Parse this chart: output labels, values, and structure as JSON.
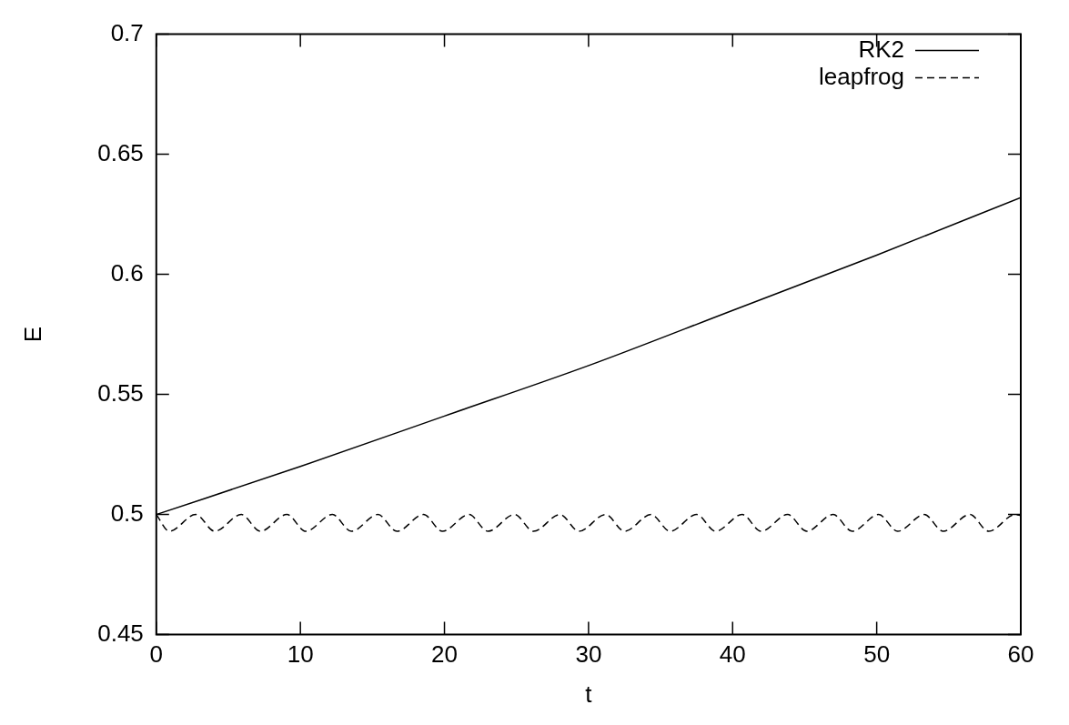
{
  "chart_data": {
    "type": "line",
    "xlabel": "t",
    "ylabel": "E",
    "xlim": [
      0,
      60
    ],
    "xticks": [
      0,
      10,
      20,
      30,
      40,
      50,
      60
    ],
    "ylim": [
      0.45,
      0.7
    ],
    "yticks": [
      0.45,
      0.5,
      0.55,
      0.6,
      0.65,
      0.7
    ],
    "grid": false,
    "legend": "top right",
    "marker": "none",
    "series": [
      {
        "name": "RK2",
        "color": "#000000",
        "line_style": "solid",
        "x": [
          0,
          10,
          20,
          30,
          40,
          50,
          60
        ],
        "values": [
          0.5,
          0.52,
          0.541,
          0.562,
          0.585,
          0.608,
          0.632
        ]
      },
      {
        "name": "leapfrog",
        "color": "#000000",
        "line_style": "dashed",
        "x": [
          0,
          0.9,
          2.74,
          4.06,
          5.9,
          7.22,
          9.06,
          10.38,
          12.22,
          13.54,
          15.38,
          16.7,
          18.54,
          19.86,
          21.7,
          23.02,
          24.86,
          26.18,
          28.02,
          29.34,
          31.18,
          32.5,
          34.34,
          35.66,
          37.5,
          38.82,
          40.66,
          41.98,
          43.82,
          45.14,
          46.98,
          48.3,
          50.14,
          51.46,
          53.3,
          54.62,
          56.46,
          57.78,
          59.62,
          60
        ],
        "values": [
          0.5,
          0.493,
          0.5,
          0.493,
          0.5,
          0.493,
          0.5,
          0.493,
          0.5,
          0.493,
          0.5,
          0.493,
          0.5,
          0.493,
          0.5,
          0.493,
          0.5,
          0.493,
          0.5,
          0.493,
          0.5,
          0.493,
          0.5,
          0.493,
          0.5,
          0.493,
          0.5,
          0.493,
          0.5,
          0.493,
          0.5,
          0.493,
          0.5,
          0.493,
          0.5,
          0.493,
          0.5,
          0.493,
          0.5,
          0.4995
        ]
      }
    ]
  }
}
